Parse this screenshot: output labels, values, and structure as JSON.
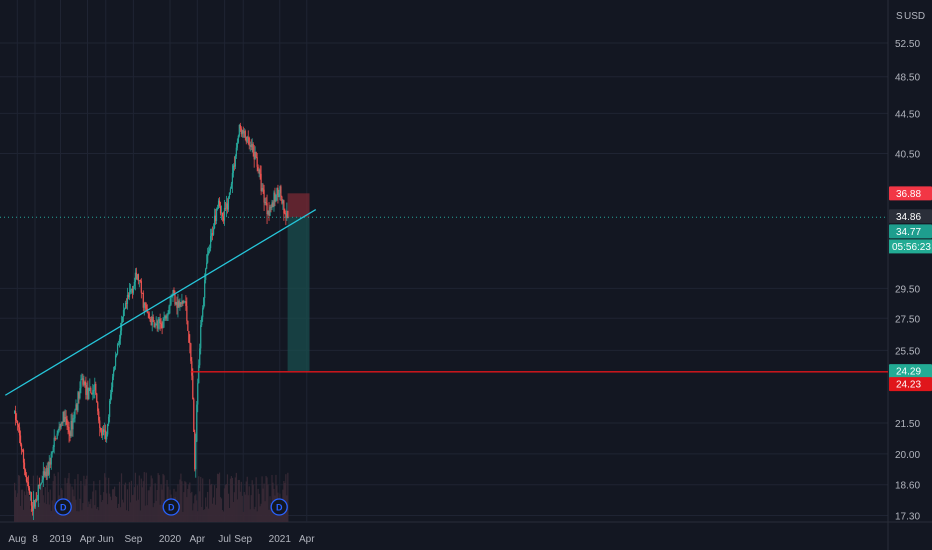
{
  "chart_data": {
    "type": "candlestick",
    "currency": "USD",
    "scale_label": "S",
    "price_axis": {
      "ticks": [
        "52.50",
        "48.50",
        "44.50",
        "40.50",
        "29.50",
        "27.50",
        "25.50",
        "21.50",
        "20.00",
        "18.60",
        "17.30"
      ],
      "scale": "log",
      "range": [
        17.0,
        57.0
      ]
    },
    "time_axis": {
      "ticks": [
        "Aug",
        "8",
        "2019",
        "Apr",
        "Jun",
        "Sep",
        "2020",
        "Apr",
        "Jul",
        "Sep",
        "2021",
        "Apr"
      ]
    },
    "price_path": [
      [
        "2018-08-01",
        22.0
      ],
      [
        "2018-08-20",
        20.6
      ],
      [
        "2018-09-10",
        18.7
      ],
      [
        "2018-10-01",
        17.6
      ],
      [
        "2018-10-25",
        18.6
      ],
      [
        "2018-11-20",
        19.2
      ],
      [
        "2018-12-15",
        20.7
      ],
      [
        "2019-01-10",
        21.8
      ],
      [
        "2019-02-01",
        21.0
      ],
      [
        "2019-02-25",
        22.6
      ],
      [
        "2019-03-15",
        23.8
      ],
      [
        "2019-04-05",
        22.9
      ],
      [
        "2019-04-25",
        23.4
      ],
      [
        "2019-05-15",
        21.0
      ],
      [
        "2019-06-05",
        20.8
      ],
      [
        "2019-06-20",
        23.5
      ],
      [
        "2019-07-10",
        25.8
      ],
      [
        "2019-08-01",
        27.8
      ],
      [
        "2019-08-25",
        29.5
      ],
      [
        "2019-09-15",
        30.4
      ],
      [
        "2019-10-05",
        28.5
      ],
      [
        "2019-10-25",
        27.4
      ],
      [
        "2019-11-20",
        26.9
      ],
      [
        "2019-12-15",
        27.5
      ],
      [
        "2020-01-10",
        29.3
      ],
      [
        "2020-01-30",
        28.3
      ],
      [
        "2020-02-20",
        28.6
      ],
      [
        "2020-03-05",
        26.0
      ],
      [
        "2020-03-16",
        23.5
      ],
      [
        "2020-03-23",
        19.0
      ],
      [
        "2020-04-01",
        23.5
      ],
      [
        "2020-04-15",
        27.5
      ],
      [
        "2020-05-01",
        31.0
      ],
      [
        "2020-05-20",
        33.5
      ],
      [
        "2020-06-10",
        36.5
      ],
      [
        "2020-06-25",
        34.5
      ],
      [
        "2020-07-15",
        36.5
      ],
      [
        "2020-08-01",
        39.5
      ],
      [
        "2020-08-20",
        43.0
      ],
      [
        "2020-09-10",
        42.0
      ],
      [
        "2020-09-25",
        41.0
      ],
      [
        "2020-10-15",
        40.0
      ],
      [
        "2020-11-01",
        37.5
      ],
      [
        "2020-11-20",
        35.5
      ],
      [
        "2020-12-10",
        36.0
      ],
      [
        "2020-12-30",
        37.5
      ],
      [
        "2021-01-15",
        35.0
      ],
      [
        "2021-01-30",
        34.8
      ]
    ],
    "volume_color": "#3a2a36",
    "up_color": "#26a69a",
    "down_color": "#ef5350",
    "trendline": {
      "color": "#26c6da",
      "points": [
        [
          "2018-07-01",
          22.95
        ],
        [
          "2021-05-01",
          35.5
        ]
      ]
    },
    "price_lines": [
      {
        "label": "36.88",
        "value": 36.88,
        "color": "#f23645",
        "type": "stop"
      },
      {
        "label": "34.86",
        "value": 34.86,
        "color": "#2a2e39",
        "type": "current"
      },
      {
        "label": "34.77",
        "value": 34.77,
        "color": "#1e9e8e",
        "type": "last"
      },
      {
        "label": "24.29",
        "value": 24.29,
        "color": "#22ab94",
        "type": "target"
      },
      {
        "label": "24.23",
        "value": 24.23,
        "color": "#e0161b",
        "type": "support"
      }
    ],
    "countdown": {
      "label": "05:56:23",
      "color": "#22ab94"
    },
    "horizontal_line": {
      "value": 24.25,
      "color": "#e0161b",
      "start": "2020-03-10"
    },
    "short_position": {
      "start": "2021-01-27",
      "end": "2021-04-10",
      "entry": 34.86,
      "stop": 36.88,
      "target": 24.29,
      "risk_color": "#7a2a34",
      "reward_color": "#1a4d4d"
    },
    "dividend_markers": [
      {
        "date": "2019-01-10",
        "label": "D"
      },
      {
        "date": "2020-01-05",
        "label": "D"
      },
      {
        "date": "2020-12-30",
        "label": "D"
      }
    ]
  }
}
